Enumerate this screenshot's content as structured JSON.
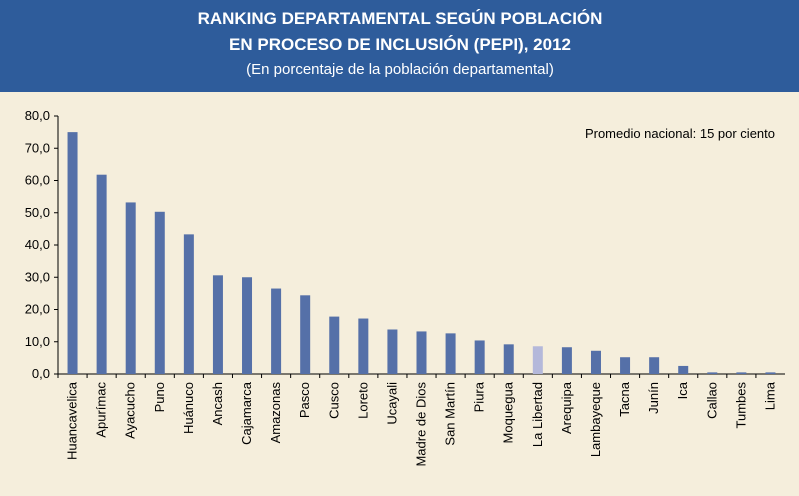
{
  "chart_data": {
    "type": "bar",
    "title": "RANKING DEPARTAMENTAL SEGÚN POBLACIÓN",
    "title_line2": "EN PROCESO DE INCLUSIÓN (PEPI), 2012",
    "subtitle": "(En porcentaje de la población departamental)",
    "annotation": "Promedio nacional: 15 por ciento",
    "categories": [
      "Huancavelica",
      "Apurímac",
      "Ayacucho",
      "Puno",
      "Huánuco",
      "Ancash",
      "Cajamarca",
      "Amazonas",
      "Pasco",
      "Cusco",
      "Loreto",
      "Ucayali",
      "Madre de Dios",
      "San Martín",
      "Piura",
      "Moquegua",
      "La Libertad",
      "Arequipa",
      "Lambayeque",
      "Tacna",
      "Junín",
      "Ica",
      "Callao",
      "Tumbes",
      "Lima"
    ],
    "values": [
      75.0,
      61.8,
      53.2,
      50.3,
      43.3,
      30.6,
      30.0,
      26.5,
      24.4,
      17.8,
      17.2,
      13.8,
      13.2,
      12.6,
      10.4,
      9.2,
      8.6,
      8.3,
      7.2,
      5.2,
      5.2,
      2.5,
      0.5,
      0.5,
      0.5
    ],
    "colors": [
      "#5570a8",
      "#5570a8",
      "#5570a8",
      "#5570a8",
      "#5570a8",
      "#5570a8",
      "#5570a8",
      "#5570a8",
      "#5570a8",
      "#5570a8",
      "#5570a8",
      "#5570a8",
      "#5570a8",
      "#5570a8",
      "#5570a8",
      "#5570a8",
      "#b4b8da",
      "#5570a8",
      "#5570a8",
      "#5570a8",
      "#5570a8",
      "#5570a8",
      "#5570a8",
      "#5570a8",
      "#5570a8"
    ],
    "ylim": [
      0,
      80
    ],
    "yticks": [
      {
        "value": 0,
        "label": "0,0"
      },
      {
        "value": 10,
        "label": "10,0"
      },
      {
        "value": 20,
        "label": "20,0"
      },
      {
        "value": 30,
        "label": "30,0"
      },
      {
        "value": 40,
        "label": "40,0"
      },
      {
        "value": 50,
        "label": "50,0"
      },
      {
        "value": 60,
        "label": "60,0"
      },
      {
        "value": 70,
        "label": "70,0"
      },
      {
        "value": 80,
        "label": "80,0"
      }
    ],
    "grid": false
  }
}
